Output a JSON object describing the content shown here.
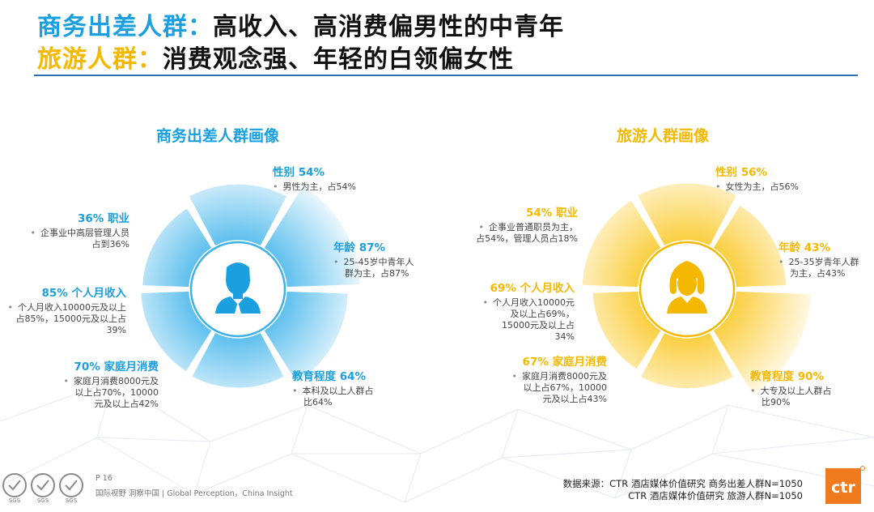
{
  "header": {
    "line1_highlight": "商务出差人群：",
    "line1_text": "高收入、高消费偏男性的中青年",
    "line2_highlight": "旅游人群：",
    "line2_text": "消费观念强、年轻的白领偏女性"
  },
  "colors": {
    "business_accent": "#1a9fe0",
    "tourism_accent": "#f5b800",
    "business_fan": "#3cb2ea",
    "tourism_fan": "#f9c51a",
    "divider": "#2e6fb7"
  },
  "business": {
    "title": "商务出差人群画像",
    "icon": "male-user-icon",
    "levels": [
      0.54,
      0.87,
      0.64,
      0.42,
      0.39,
      0.36
    ],
    "items": {
      "gender": {
        "head": "性别 54%",
        "text": [
          "男性为主，占54%"
        ]
      },
      "age": {
        "head": "年龄 87%",
        "text": [
          "25-45岁中青年人",
          "群为主，占87%"
        ]
      },
      "edu": {
        "head": "教育程度 64%",
        "text": [
          "本科及以上人群占",
          "比64%"
        ]
      },
      "family": {
        "head": "70% 家庭月消费",
        "text": [
          "家庭月消费8000元及",
          "以上占70%，10000",
          "元及以上占42%"
        ]
      },
      "income": {
        "head": "85% 个人月收入",
        "text": [
          "个人月收入10000元及以上",
          "占85%，15000元及以上占",
          "39%"
        ]
      },
      "job": {
        "head": "36% 职业",
        "text": [
          "企事业中高层管理人员",
          "占到36%"
        ]
      }
    }
  },
  "tourism": {
    "title": "旅游人群画像",
    "icon": "female-user-icon",
    "levels": [
      0.56,
      0.43,
      0.9,
      0.43,
      0.34,
      0.54
    ],
    "items": {
      "gender": {
        "head": "性别 56%",
        "text": [
          "女性为主，占56%"
        ]
      },
      "age": {
        "head": "年龄 43%",
        "text": [
          "25-35岁青年人群",
          "为主，占43%"
        ]
      },
      "edu": {
        "head": "教育程度 90%",
        "text": [
          "大专及以上人群占",
          "比90%"
        ]
      },
      "family": {
        "head": "67% 家庭月消费",
        "text": [
          "家庭月消费8000元及",
          "以上占67%，10000",
          "元及以上占43%"
        ]
      },
      "income": {
        "head": "69% 个人月收入",
        "text": [
          "个人月收入10000元",
          "及以上占69%，",
          "15000元及以上占",
          "34%"
        ]
      },
      "job": {
        "head": "54% 职业",
        "text": [
          "企事业普通职员为主，",
          "占54%，管理人员占18%"
        ]
      }
    }
  },
  "footer": {
    "page": "P 16",
    "tagline": "国际视野  洞察中国 |  Global Perception，China Insight",
    "source_line1": "数据来源：CTR 酒店媒体价值研究  商务出差人群N=1050",
    "source_line2": "CTR 酒店媒体价值研究  旅游人群N=1050",
    "logo": "ctr",
    "seal_label": "SGS"
  }
}
